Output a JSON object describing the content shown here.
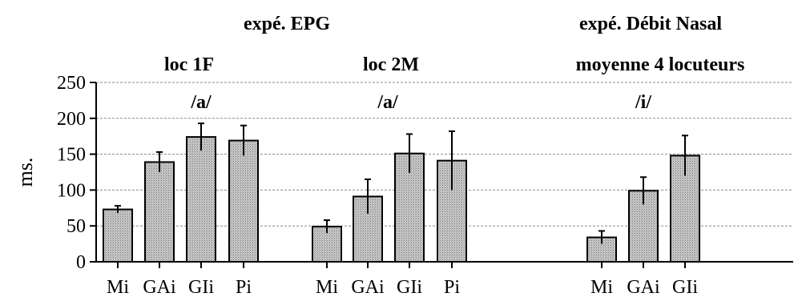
{
  "chart_data": {
    "type": "bar",
    "ylabel": "ms.",
    "ylim": [
      0,
      250
    ],
    "yticks": [
      0,
      50,
      100,
      150,
      200,
      250
    ],
    "grid": "horizontal dashed",
    "bar_color": "#c8c8c8",
    "header_top": [
      "expé. EPG",
      "expé. Débit Nasal"
    ],
    "panels": [
      {
        "subtitle": "loc 1F",
        "vowel": "/a/",
        "categories": [
          "Mi",
          "GAi",
          "GIi",
          "Pi"
        ],
        "values": [
          73,
          139,
          174,
          169
        ],
        "error": [
          5,
          14,
          19,
          21
        ]
      },
      {
        "subtitle": "loc 2M",
        "vowel": "/a/",
        "categories": [
          "Mi",
          "GAi",
          "GIi",
          "Pi"
        ],
        "values": [
          49,
          91,
          151,
          141
        ],
        "error": [
          9,
          24,
          27,
          41
        ]
      },
      {
        "subtitle": "moyenne 4 locuteurs",
        "vowel": "/i/",
        "categories": [
          "Mi",
          "GAi",
          "GIi"
        ],
        "values": [
          34,
          99,
          148
        ],
        "error": [
          9,
          19,
          28
        ]
      }
    ]
  }
}
